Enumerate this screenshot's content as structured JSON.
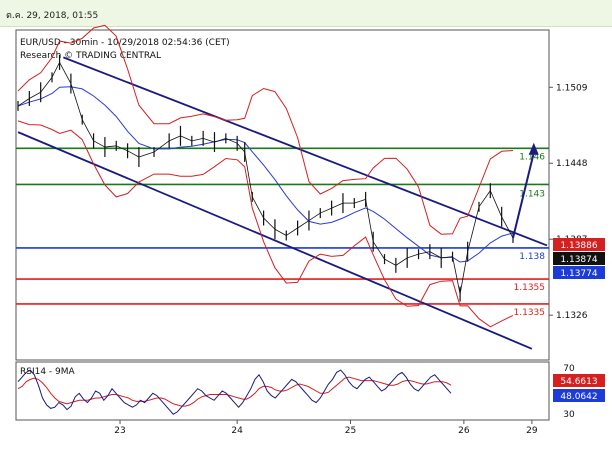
{
  "header": {
    "timestamp": "ต.ค. 29, 2018, 01:55"
  },
  "chart_data": {
    "type": "line",
    "title": "EUR/USD - 30min - 10/29/2018 02:54:36 (CET)",
    "subtitle": "Research © TRADING CENTRAL",
    "ylim": [
      1.129,
      1.1555
    ],
    "y_ticks": [
      "1.1509",
      "1.1448",
      "1.1387",
      "1.1326"
    ],
    "x_ticks": [
      "23",
      "24",
      "25",
      "26",
      "29"
    ],
    "grid": false,
    "price_series": [
      {
        "t": 0,
        "v": 1.1494
      },
      {
        "t": 3,
        "v": 1.15
      },
      {
        "t": 6,
        "v": 1.1505
      },
      {
        "t": 9,
        "v": 1.1517
      },
      {
        "t": 11,
        "v": 1.1529
      },
      {
        "t": 14,
        "v": 1.1512
      },
      {
        "t": 17,
        "v": 1.1483
      },
      {
        "t": 20,
        "v": 1.1466
      },
      {
        "t": 23,
        "v": 1.1461
      },
      {
        "t": 26,
        "v": 1.1462
      },
      {
        "t": 29,
        "v": 1.1458
      },
      {
        "t": 32,
        "v": 1.1453
      },
      {
        "t": 36,
        "v": 1.1457
      },
      {
        "t": 40,
        "v": 1.1466
      },
      {
        "t": 43,
        "v": 1.147
      },
      {
        "t": 46,
        "v": 1.1466
      },
      {
        "t": 49,
        "v": 1.1468
      },
      {
        "t": 52,
        "v": 1.1465
      },
      {
        "t": 55,
        "v": 1.1468
      },
      {
        "t": 58,
        "v": 1.1464
      },
      {
        "t": 60,
        "v": 1.1457
      },
      {
        "t": 62,
        "v": 1.1421
      },
      {
        "t": 65,
        "v": 1.1404
      },
      {
        "t": 68,
        "v": 1.1395
      },
      {
        "t": 71,
        "v": 1.139
      },
      {
        "t": 74,
        "v": 1.1396
      },
      {
        "t": 77,
        "v": 1.1402
      },
      {
        "t": 80,
        "v": 1.1408
      },
      {
        "t": 83,
        "v": 1.1412
      },
      {
        "t": 86,
        "v": 1.1416
      },
      {
        "t": 89,
        "v": 1.1416
      },
      {
        "t": 92,
        "v": 1.1419
      },
      {
        "t": 94,
        "v": 1.1385
      },
      {
        "t": 97,
        "v": 1.1371
      },
      {
        "t": 100,
        "v": 1.1366
      },
      {
        "t": 103,
        "v": 1.1372
      },
      {
        "t": 106,
        "v": 1.1375
      },
      {
        "t": 109,
        "v": 1.1377
      },
      {
        "t": 112,
        "v": 1.1372
      },
      {
        "t": 115,
        "v": 1.1373
      },
      {
        "t": 117,
        "v": 1.1343
      },
      {
        "t": 119,
        "v": 1.1377
      },
      {
        "t": 122,
        "v": 1.1413
      },
      {
        "t": 125,
        "v": 1.1426
      },
      {
        "t": 128,
        "v": 1.1405
      },
      {
        "t": 131,
        "v": 1.1388
      }
    ],
    "levels": [
      {
        "value": 1.146,
        "label": "1.146",
        "color": "#1a7a1a"
      },
      {
        "value": 1.1431,
        "label": "1.143",
        "color": "#1a7a1a"
      },
      {
        "value": 1.138,
        "label": "1.138",
        "color": "#1d3bd6"
      },
      {
        "value": 1.1355,
        "label": "1.1355",
        "color": "#e02020"
      },
      {
        "value": 1.1335,
        "label": "1.1335",
        "color": "#e02020"
      }
    ],
    "price_tags": [
      {
        "value": 1.13886,
        "label": "1.13886",
        "bg": "#d42020",
        "fg": "#ffffff"
      },
      {
        "value": 1.13874,
        "label": "1.13874",
        "bg": "#111111",
        "fg": "#ffffff"
      },
      {
        "value": 1.13774,
        "label": "1.13774",
        "bg": "#1d3bd6",
        "fg": "#ffffff"
      }
    ],
    "rsi": {
      "label": "RSI14 - 9MA",
      "ylim": [
        25,
        75
      ],
      "y_ticks": [
        "70",
        "30"
      ],
      "tags": [
        {
          "value": 54.6613,
          "label": "54.6613",
          "bg": "#d42020",
          "fg": "#ffffff"
        },
        {
          "value": 48.0642,
          "label": "48.0642",
          "bg": "#1d3bd6",
          "fg": "#ffffff"
        }
      ],
      "rsi_values": [
        58,
        62,
        66,
        68,
        64,
        55,
        44,
        38,
        35,
        36,
        40,
        38,
        34,
        37,
        45,
        48,
        43,
        40,
        44,
        50,
        48,
        42,
        46,
        52,
        48,
        44,
        40,
        38,
        36,
        38,
        42,
        40,
        44,
        48,
        46,
        42,
        38,
        34,
        30,
        32,
        36,
        40,
        44,
        48,
        52,
        50,
        46,
        44,
        42,
        46,
        50,
        48,
        44,
        40,
        36,
        40,
        46,
        52,
        60,
        64,
        58,
        50,
        46,
        44,
        48,
        52,
        56,
        60,
        58,
        54,
        50,
        46,
        42,
        40,
        44,
        50,
        56,
        60,
        66,
        68,
        64,
        58,
        54,
        52,
        56,
        60,
        62,
        58,
        54,
        50,
        52,
        56,
        60,
        64,
        66,
        62,
        56,
        52,
        50,
        54,
        58,
        62,
        64,
        60,
        56,
        52,
        48
      ],
      "ma_values": [
        52,
        54,
        58,
        60,
        61,
        60,
        57,
        53,
        48,
        44,
        41,
        40,
        39,
        40,
        41,
        42,
        42,
        42,
        43,
        44,
        44,
        45,
        46,
        47,
        47,
        46,
        45,
        44,
        42,
        41,
        41,
        41,
        42,
        43,
        44,
        44,
        43,
        41,
        39,
        38,
        37,
        37,
        38,
        40,
        43,
        45,
        46,
        47,
        47,
        47,
        47,
        47,
        46,
        45,
        44,
        43,
        43,
        45,
        48,
        52,
        54,
        54,
        53,
        51,
        50,
        50,
        51,
        53,
        55,
        56,
        55,
        54,
        52,
        50,
        48,
        48,
        49,
        52,
        55,
        58,
        61,
        62,
        61,
        60,
        59,
        59,
        59,
        59,
        58,
        57,
        56,
        55,
        55,
        56,
        58,
        59,
        59,
        58,
        57,
        56,
        56,
        57,
        58,
        58,
        58,
        57,
        55
      ]
    }
  }
}
